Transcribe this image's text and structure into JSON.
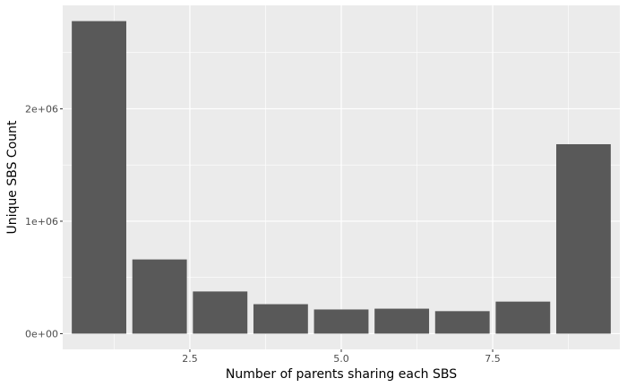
{
  "chart_data": {
    "type": "bar",
    "xlabel": "Number of parents sharing each SBS",
    "ylabel": "Unique SBS Count",
    "x": [
      1,
      2,
      3,
      4,
      5,
      6,
      7,
      8,
      9
    ],
    "values": [
      2780000,
      660000,
      375000,
      262000,
      215000,
      222000,
      200000,
      285000,
      1685000
    ],
    "xlim": [
      0.4,
      9.6
    ],
    "ylim": [
      -140000,
      2920000
    ],
    "x_ticks": [
      {
        "value": 2.5,
        "label": "2.5"
      },
      {
        "value": 5.0,
        "label": "5.0"
      },
      {
        "value": 7.5,
        "label": "7.5"
      }
    ],
    "y_ticks": [
      {
        "value": 0,
        "label": "0e+00"
      },
      {
        "value": 1000000,
        "label": "1e+06"
      },
      {
        "value": 2000000,
        "label": "2e+06"
      }
    ],
    "grid": true,
    "colors": {
      "panel": "#ebebeb",
      "grid": "#ffffff",
      "bar": "#595959"
    }
  }
}
